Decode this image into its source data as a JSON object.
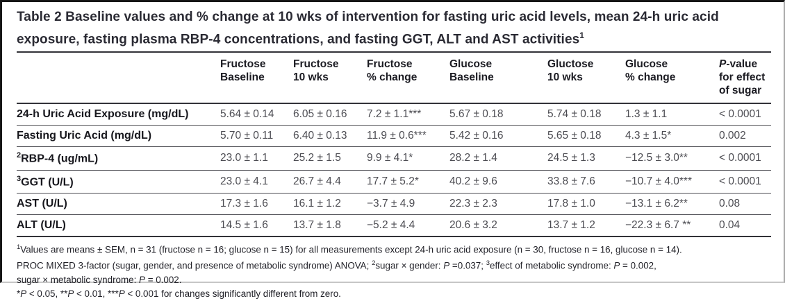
{
  "title": {
    "text": "Table 2 Baseline values and % change at 10 wks of intervention for fasting uric acid levels, mean 24-h uric acid\nexposure, fasting plasma RBP-4 concentrations, and fasting GGT, ALT and AST activities{sup}1{/sup}"
  },
  "table": {
    "columns": [
      "",
      "Fructose\nBaseline",
      "Fructose\n10 wks",
      "Fructose\n% change",
      "Glucose\nBaseline",
      "Gluctose\n10 wks",
      "Glucose\n% change",
      "{i}P{/i}-value\nfor effect\nof sugar"
    ],
    "rows": [
      {
        "label": "24-h Uric Acid Exposure (mg/dL)",
        "values": [
          "5.64 ± 0.14",
          "6.05 ± 0.16",
          "7.2 ± 1.1***",
          "5.67 ± 0.18",
          "5.74 ± 0.18",
          "1.3 ± 1.1",
          "< 0.0001"
        ]
      },
      {
        "label": "Fasting Uric Acid (mg/dL)",
        "values": [
          "5.70 ± 0.11",
          "6.40 ± 0.13",
          "11.9 ± 0.6***",
          "5.42 ± 0.16",
          "5.65 ± 0.18",
          "4.3 ± 1.5*",
          "0.002"
        ]
      },
      {
        "label": "{sup}2{/sup}RBP-4 (ug/mL)",
        "values": [
          "23.0 ± 1.1",
          "25.2 ± 1.5",
          "9.9 ± 4.1*",
          "28.2 ± 1.4",
          "24.5 ± 1.3",
          "−12.5 ± 3.0**",
          "< 0.0001"
        ]
      },
      {
        "label": "{sup}3{/sup}GGT (U/L)",
        "values": [
          "23.0 ± 4.1",
          "26.7 ± 4.4",
          "17.7 ± 5.2*",
          "40.2 ± 9.6",
          "33.8 ± 7.6",
          "−10.7 ± 4.0***",
          "< 0.0001"
        ]
      },
      {
        "label": "AST (U/L)",
        "values": [
          "17.3 ± 1.6",
          "16.1 ± 1.2",
          "−3.7 ± 4.9",
          "22.3 ± 2.3",
          "17.8 ± 1.0",
          "−13.1 ± 6.2**",
          "0.08"
        ]
      },
      {
        "label": "ALT (U/L)",
        "values": [
          "14.5 ± 1.6",
          "13.7 ± 1.8",
          "−5.2 ± 4.4",
          "20.6 ± 3.2",
          "13.7 ± 1.2",
          "−22.3 ± 6.7 **",
          "0.04"
        ]
      }
    ]
  },
  "footnotes": [
    "{sup}1{/sup}Values are means ± SEM, n = 31 (fructose n = 16; glucose n = 15) for all measurements except 24-h uric acid exposure (n = 30, fructose n = 16, glucose n = 14).",
    "PROC MIXED 3-factor (sugar, gender, and presence of metabolic syndrome) ANOVA; {sup}2{/sup}sugar × gender: {i}P{/i} =0.037; {sup}3{/sup}effect of metabolic syndrome: {i}P{/i} = 0.002,",
    "sugar × metabolic syndrome: {i}P{/i} = 0.002.",
    "*{i}P{/i} < 0.05, **{i}P{/i} < 0.01, ***{i}P{/i} < 0.001 for changes significantly different from zero."
  ],
  "colors": {
    "frame_border": "#161616",
    "rule_dark": "#323238",
    "rule_row": "#4a4a50",
    "text_heading": "#1b1b22",
    "text_data": "#4c4c52"
  }
}
